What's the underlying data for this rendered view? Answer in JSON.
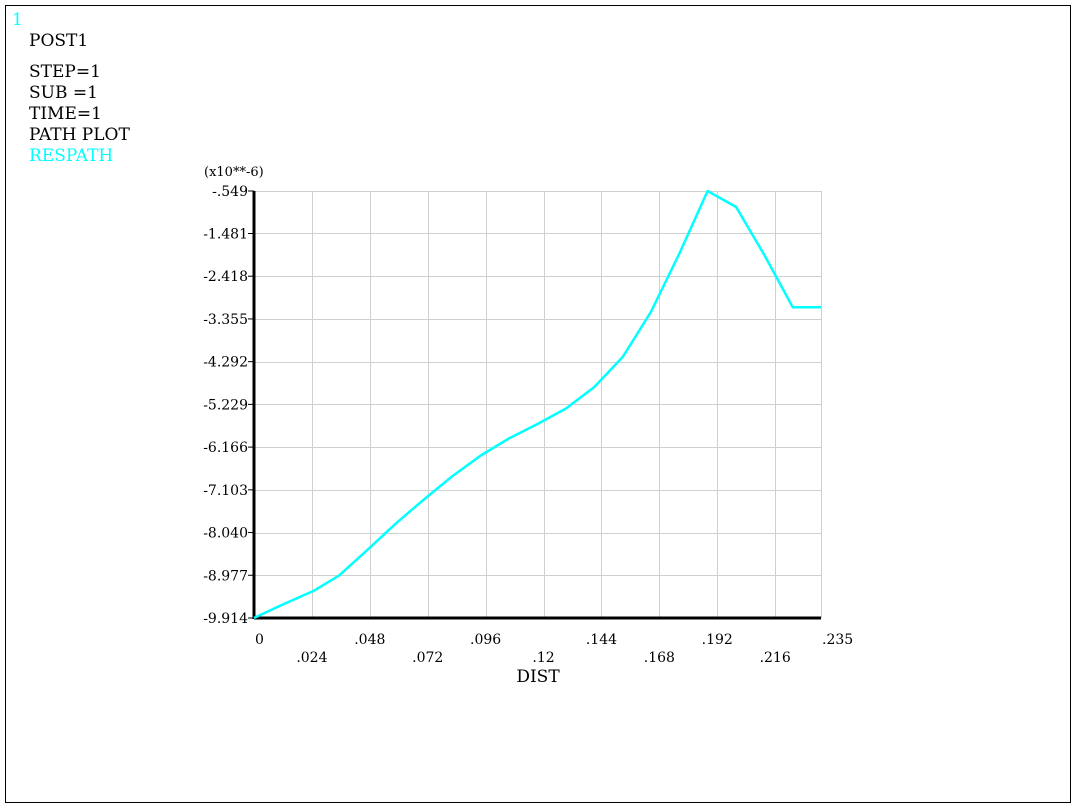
{
  "window_number": "1",
  "header": {
    "program": "POST1",
    "lines": [
      "STEP=1",
      "SUB =1",
      "TIME=1",
      "PATH PLOT"
    ],
    "series_label": "RESPATH"
  },
  "colors": {
    "series": "#00ffff",
    "grid": "#cfcfcf",
    "axis": "#000000",
    "background": "#ffffff"
  },
  "chart_data": {
    "type": "line",
    "xlabel": "DIST",
    "ylabel": "",
    "y_multiplier": "(x10**-6)",
    "xlim": [
      0,
      0.235
    ],
    "ylim": [
      -9.914,
      -0.549
    ],
    "x_ticks": [
      "0",
      ".024",
      ".048",
      ".072",
      ".096",
      ".12",
      ".144",
      ".168",
      ".192",
      ".216",
      ".235"
    ],
    "x_tick_values": [
      0,
      0.024,
      0.048,
      0.072,
      0.096,
      0.12,
      0.144,
      0.168,
      0.192,
      0.216,
      0.235
    ],
    "y_ticks": [
      "-.549",
      "-1.481",
      "-2.418",
      "-3.355",
      "-4.292",
      "-5.229",
      "-6.166",
      "-7.103",
      "-8.040",
      "-8.977",
      "-9.914"
    ],
    "y_tick_values": [
      -0.549,
      -1.481,
      -2.418,
      -3.355,
      -4.292,
      -5.229,
      -6.166,
      -7.103,
      -8.04,
      -8.977,
      -9.914
    ],
    "grid": true,
    "series": [
      {
        "name": "RESPATH",
        "x": [
          0,
          0.0118,
          0.0247,
          0.0353,
          0.047,
          0.0588,
          0.0705,
          0.0823,
          0.094,
          0.1058,
          0.1175,
          0.1293,
          0.141,
          0.1528,
          0.1645,
          0.1763,
          0.188,
          0.1998,
          0.2115,
          0.2233,
          0.235
        ],
        "y": [
          -9.914,
          -9.62,
          -9.32,
          -8.98,
          -8.42,
          -7.84,
          -7.31,
          -6.8,
          -6.35,
          -5.97,
          -5.66,
          -5.32,
          -4.85,
          -4.19,
          -3.2,
          -1.92,
          -0.549,
          -0.9,
          -1.95,
          -3.1,
          -3.1
        ]
      }
    ]
  }
}
